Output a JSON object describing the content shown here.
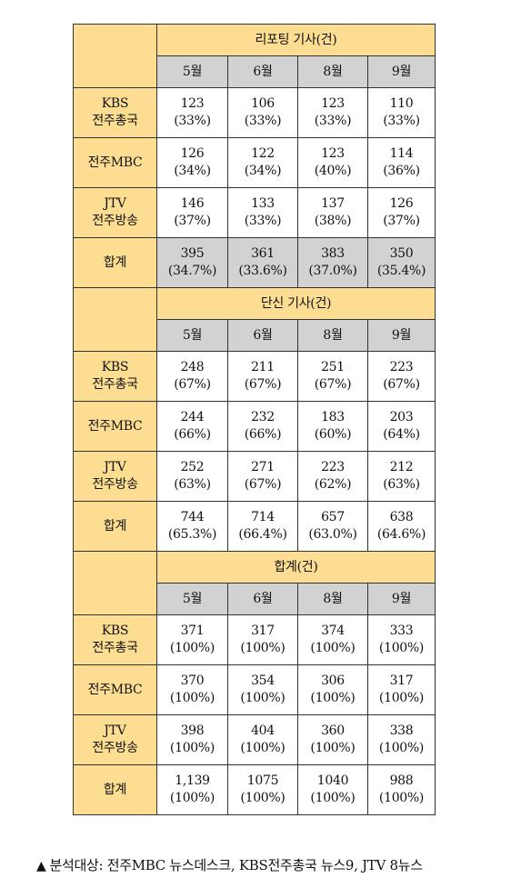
{
  "months": [
    "5월",
    "6월",
    "8월",
    "9월"
  ],
  "sections": [
    {
      "title": "리포팅 기사(건)",
      "rows": [
        {
          "label": [
            "KBS",
            "전주총국"
          ],
          "values": [
            [
              "123",
              "(33%)"
            ],
            [
              "106",
              "(33%)"
            ],
            [
              "123",
              "(33%)"
            ],
            [
              "110",
              "(33%)"
            ]
          ]
        },
        {
          "label": [
            "전주MBC"
          ],
          "values": [
            [
              "126",
              "(34%)"
            ],
            [
              "122",
              "(34%)"
            ],
            [
              "123",
              "(40%)"
            ],
            [
              "114",
              "(36%)"
            ]
          ]
        },
        {
          "label": [
            "JTV",
            "전주방송"
          ],
          "values": [
            [
              "146",
              "(37%)"
            ],
            [
              "133",
              "(33%)"
            ],
            [
              "137",
              "(38%)"
            ],
            [
              "126",
              "(37%)"
            ]
          ]
        },
        {
          "label": [
            "합계"
          ],
          "total": true,
          "values": [
            [
              "395",
              "(34.7%)"
            ],
            [
              "361",
              "(33.6%)"
            ],
            [
              "383",
              "(37.0%)"
            ],
            [
              "350",
              "(35.4%)"
            ]
          ]
        }
      ]
    },
    {
      "title": "단신 기사(건)",
      "rows": [
        {
          "label": [
            "KBS",
            "전주총국"
          ],
          "values": [
            [
              "248",
              "(67%)"
            ],
            [
              "211",
              "(67%)"
            ],
            [
              "251",
              "(67%)"
            ],
            [
              "223",
              "(67%)"
            ]
          ]
        },
        {
          "label": [
            "전주MBC"
          ],
          "values": [
            [
              "244",
              "(66%)"
            ],
            [
              "232",
              "(66%)"
            ],
            [
              "183",
              "(60%)"
            ],
            [
              "203",
              "(64%)"
            ]
          ]
        },
        {
          "label": [
            "JTV",
            "전주방송"
          ],
          "values": [
            [
              "252",
              "(63%)"
            ],
            [
              "271",
              "(67%)"
            ],
            [
              "223",
              "(62%)"
            ],
            [
              "212",
              "(63%)"
            ]
          ]
        },
        {
          "label": [
            "합계"
          ],
          "values": [
            [
              "744",
              "(65.3%)"
            ],
            [
              "714",
              "(66.4%)"
            ],
            [
              "657",
              "(63.0%)"
            ],
            [
              "638",
              "(64.6%)"
            ]
          ]
        }
      ]
    },
    {
      "title": "합계(건)",
      "rows": [
        {
          "label": [
            "KBS",
            "전주총국"
          ],
          "values": [
            [
              "371",
              "(100%)"
            ],
            [
              "317",
              "(100%)"
            ],
            [
              "374",
              "(100%)"
            ],
            [
              "333",
              "(100%)"
            ]
          ]
        },
        {
          "label": [
            "전주MBC"
          ],
          "values": [
            [
              "370",
              "(100%)"
            ],
            [
              "354",
              "(100%)"
            ],
            [
              "306",
              "(100%)"
            ],
            [
              "317",
              "(100%)"
            ]
          ]
        },
        {
          "label": [
            "JTV",
            "전주방송"
          ],
          "values": [
            [
              "398",
              "(100%)"
            ],
            [
              "404",
              "(100%)"
            ],
            [
              "360",
              "(100%)"
            ],
            [
              "338",
              "(100%)"
            ]
          ]
        },
        {
          "label": [
            "합계"
          ],
          "values": [
            [
              "1,139",
              "(100%)"
            ],
            [
              "1075",
              "(100%)"
            ],
            [
              "1040",
              "(100%)"
            ],
            [
              "988",
              "(100%)"
            ]
          ]
        }
      ]
    }
  ],
  "footnote": {
    "marker": "▲",
    "text": "분석대상: 전주MBC 뉴스데스크, KBS전주총국 뉴스9, JTV 8뉴스"
  }
}
